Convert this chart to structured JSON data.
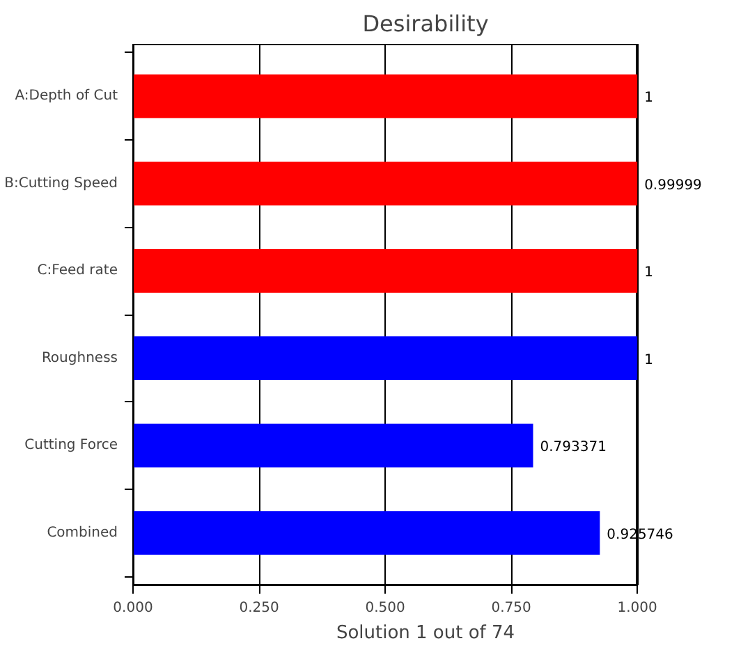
{
  "chart_data": {
    "type": "bar",
    "orientation": "horizontal",
    "title": "Desirability",
    "xlabel": "Solution 1 out of 74",
    "categories": [
      "A:Depth of Cut",
      "B:Cutting Speed",
      "C:Feed rate",
      "Roughness",
      "Cutting Force",
      "Combined"
    ],
    "values": [
      1,
      0.99999,
      1,
      1,
      0.793371,
      0.925746
    ],
    "colors": [
      "#ff0000",
      "#ff0000",
      "#ff0000",
      "#0000ff",
      "#0000ff",
      "#0000ff"
    ],
    "xlim": [
      0,
      1
    ],
    "xticks": [
      {
        "value": 0,
        "label": "0.000"
      },
      {
        "value": 0.25,
        "label": "0.250"
      },
      {
        "value": 0.5,
        "label": "0.500"
      },
      {
        "value": 0.75,
        "label": "0.750"
      },
      {
        "value": 1,
        "label": "1.000"
      }
    ],
    "grid": "x",
    "data_labels": true
  }
}
